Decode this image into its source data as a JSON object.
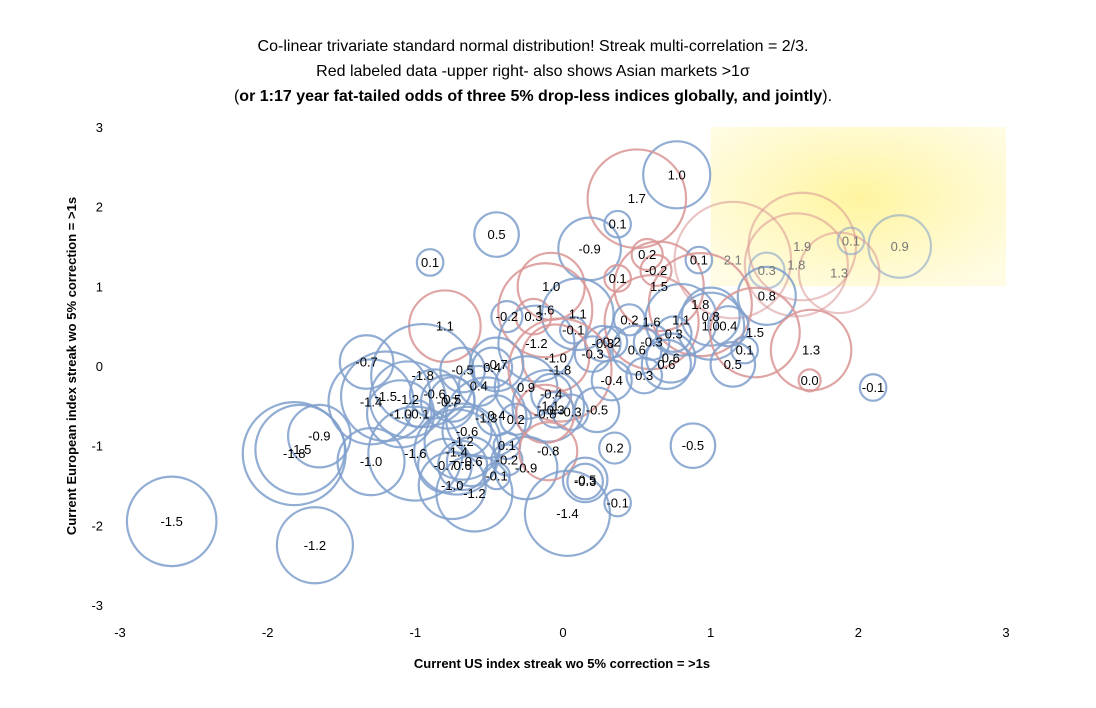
{
  "chart_data": {
    "type": "scatter",
    "subtype": "bubble",
    "title": "Co-linear trivariate standard normal distribution! Streak multi-correlation = 2/3.",
    "subtitle": "Red labeled data -upper right- also shows Asian markets >1σ",
    "subtitle2_open": "(",
    "subtitle2_bold": "or 1:17 year fat-tailed odds of three 5% drop-less indices globally, and jointly",
    "subtitle2_close": ").",
    "xlabel": "Current US index streak wo 5% correction = >1s",
    "ylabel": "Current European index streak wo 5% correction = >1s",
    "xlim": [
      -3,
      3
    ],
    "ylim": [
      -3,
      3
    ],
    "xticks": [
      "-3",
      "-2",
      "-1",
      "0",
      "1",
      "2",
      "3"
    ],
    "yticks": [
      "3",
      "2",
      "1",
      "0",
      "-1",
      "-2",
      "-3"
    ],
    "highlight_region": {
      "x": [
        1,
        3
      ],
      "y": [
        1,
        3
      ],
      "color": "#fff6a8",
      "meaning": "both US and European streaks > 1σ"
    },
    "colors": {
      "blue": "#7f9fcb",
      "red": "#d99595",
      "highlight": "#fff6a8"
    },
    "points": [
      {
        "x": 0.77,
        "y": 2.4,
        "label": "1.0",
        "size": 1.0,
        "color": "blue"
      },
      {
        "x": 0.5,
        "y": 2.1,
        "label": "1.7",
        "size": 1.7,
        "color": "red"
      },
      {
        "x": 0.37,
        "y": 1.78,
        "label": "0.1",
        "size": 0.1,
        "color": "blue"
      },
      {
        "x": -0.45,
        "y": 1.65,
        "label": "0.5",
        "size": 0.5,
        "color": "blue"
      },
      {
        "x": -0.9,
        "y": 1.3,
        "label": "0.1",
        "size": 0.1,
        "color": "blue"
      },
      {
        "x": 0.18,
        "y": 1.47,
        "label": "-0.9",
        "size": 0.9,
        "color": "blue"
      },
      {
        "x": 0.57,
        "y": 1.4,
        "label": "0.2",
        "size": 0.2,
        "color": "red"
      },
      {
        "x": 0.63,
        "y": 1.2,
        "label": "-0.2",
        "size": 0.2,
        "color": "red"
      },
      {
        "x": 0.37,
        "y": 1.1,
        "label": "0.1",
        "size": 0.1,
        "color": "red"
      },
      {
        "x": 0.65,
        "y": 1.0,
        "label": "1.5",
        "size": 1.5,
        "color": "red"
      },
      {
        "x": 0.92,
        "y": 1.33,
        "label": "0.1",
        "size": 0.1,
        "color": "blue"
      },
      {
        "x": 1.15,
        "y": 1.33,
        "label": "2.1",
        "size": 2.1,
        "color": "red",
        "faded": true
      },
      {
        "x": 1.38,
        "y": 1.2,
        "label": "0.3",
        "size": 0.3,
        "color": "blue",
        "faded": true
      },
      {
        "x": 1.58,
        "y": 1.27,
        "label": "1.8",
        "size": 1.8,
        "color": "red",
        "faded": true
      },
      {
        "x": 1.62,
        "y": 1.5,
        "label": "1.9",
        "size": 1.9,
        "color": "red",
        "faded": true
      },
      {
        "x": 1.95,
        "y": 1.57,
        "label": "0.1",
        "size": 0.1,
        "color": "blue",
        "faded": true
      },
      {
        "x": 2.28,
        "y": 1.5,
        "label": "0.9",
        "size": 0.9,
        "color": "blue",
        "faded": true
      },
      {
        "x": 1.87,
        "y": 1.17,
        "label": "1.3",
        "size": 1.3,
        "color": "red",
        "faded": true
      },
      {
        "x": 1.38,
        "y": 0.88,
        "label": "0.8",
        "size": 0.8,
        "color": "blue"
      },
      {
        "x": -0.08,
        "y": 1.0,
        "label": "1.0",
        "size": 1.0,
        "color": "red"
      },
      {
        "x": 0.93,
        "y": 0.77,
        "label": "1.8",
        "size": 1.8,
        "color": "red"
      },
      {
        "x": -0.38,
        "y": 0.62,
        "label": "-0.2",
        "size": 0.2,
        "color": "blue"
      },
      {
        "x": -0.2,
        "y": 0.62,
        "label": "0.3",
        "size": 0.3,
        "color": "red"
      },
      {
        "x": -0.12,
        "y": 0.7,
        "label": "1.6",
        "size": 1.6,
        "color": "red"
      },
      {
        "x": 0.1,
        "y": 0.65,
        "label": "1.1",
        "size": 1.1,
        "color": "blue"
      },
      {
        "x": 0.45,
        "y": 0.58,
        "label": "0.2",
        "size": 0.2,
        "color": "blue"
      },
      {
        "x": 0.6,
        "y": 0.55,
        "label": "1.6",
        "size": 1.6,
        "color": "red"
      },
      {
        "x": 0.8,
        "y": 0.58,
        "label": "1.1",
        "size": 1.1,
        "color": "blue"
      },
      {
        "x": 1.0,
        "y": 0.62,
        "label": "0.8",
        "size": 0.8,
        "color": "blue"
      },
      {
        "x": 1.12,
        "y": 0.5,
        "label": "0.4",
        "size": 0.4,
        "color": "blue"
      },
      {
        "x": 1.0,
        "y": 0.5,
        "label": "1.0",
        "size": 1.0,
        "color": "blue"
      },
      {
        "x": 1.3,
        "y": 0.42,
        "label": "1.5",
        "size": 1.5,
        "color": "red"
      },
      {
        "x": 0.75,
        "y": 0.4,
        "label": "0.3",
        "size": 0.3,
        "color": "blue"
      },
      {
        "x": 0.6,
        "y": 0.3,
        "label": "-0.3",
        "size": 0.3,
        "color": "blue"
      },
      {
        "x": -0.8,
        "y": 0.5,
        "label": "1.1",
        "size": 1.1,
        "color": "red"
      },
      {
        "x": 0.07,
        "y": 0.45,
        "label": "-0.1",
        "size": 0.1,
        "color": "blue"
      },
      {
        "x": -0.18,
        "y": 0.28,
        "label": "-1.2",
        "size": 1.2,
        "color": "blue"
      },
      {
        "x": 0.27,
        "y": 0.28,
        "label": "-0.3",
        "size": 0.3,
        "color": "blue"
      },
      {
        "x": 0.33,
        "y": 0.3,
        "label": "0.2",
        "size": 0.2,
        "color": "blue"
      },
      {
        "x": 0.5,
        "y": 0.2,
        "label": "0.6",
        "size": 0.6,
        "color": "blue"
      },
      {
        "x": 0.2,
        "y": 0.15,
        "label": "-0.3",
        "size": 0.3,
        "color": "blue"
      },
      {
        "x": -0.05,
        "y": 0.1,
        "label": "-1.0",
        "size": 1.0,
        "color": "red"
      },
      {
        "x": 0.73,
        "y": 0.1,
        "label": "0.6",
        "size": 0.6,
        "color": "blue"
      },
      {
        "x": 0.7,
        "y": 0.02,
        "label": "0.6",
        "size": 0.6,
        "color": "blue"
      },
      {
        "x": 1.23,
        "y": 0.2,
        "label": "0.1",
        "size": 0.1,
        "color": "blue"
      },
      {
        "x": 1.68,
        "y": 0.2,
        "label": "1.3",
        "size": 1.3,
        "color": "red"
      },
      {
        "x": 1.15,
        "y": 0.02,
        "label": "0.5",
        "size": 0.5,
        "color": "blue"
      },
      {
        "x": 1.67,
        "y": -0.18,
        "label": "0.0",
        "size": 0.0,
        "color": "red"
      },
      {
        "x": 2.1,
        "y": -0.27,
        "label": "-0.1",
        "size": 0.1,
        "color": "blue"
      },
      {
        "x": -1.33,
        "y": 0.05,
        "label": "-0.7",
        "size": 0.7,
        "color": "blue"
      },
      {
        "x": -0.95,
        "y": -0.12,
        "label": "-1.8",
        "size": 1.8,
        "color": "blue"
      },
      {
        "x": -0.68,
        "y": -0.05,
        "label": "-0.5",
        "size": 0.5,
        "color": "blue"
      },
      {
        "x": -0.48,
        "y": -0.02,
        "label": "0.4",
        "size": 0.4,
        "color": "blue"
      },
      {
        "x": -0.45,
        "y": 0.02,
        "label": "-0.7",
        "size": 0.7,
        "color": "blue"
      },
      {
        "x": -0.57,
        "y": -0.25,
        "label": "0.4",
        "size": 0.4,
        "color": "blue"
      },
      {
        "x": -0.02,
        "y": -0.05,
        "label": "-1.8",
        "size": 1.8,
        "color": "red"
      },
      {
        "x": 0.33,
        "y": -0.18,
        "label": "-0.4",
        "size": 0.4,
        "color": "blue"
      },
      {
        "x": 0.55,
        "y": -0.12,
        "label": "0.3",
        "size": 0.3,
        "color": "blue"
      },
      {
        "x": -0.25,
        "y": -0.27,
        "label": "0.9",
        "size": 0.9,
        "color": "blue"
      },
      {
        "x": -0.08,
        "y": -0.35,
        "label": "-0.4",
        "size": 0.4,
        "color": "blue"
      },
      {
        "x": -1.3,
        "y": -0.45,
        "label": "-1.4",
        "size": 1.4,
        "color": "blue"
      },
      {
        "x": -1.2,
        "y": -0.38,
        "label": "-1.5",
        "size": 1.5,
        "color": "blue"
      },
      {
        "x": -1.05,
        "y": -0.42,
        "label": "-1.2",
        "size": 1.2,
        "color": "blue"
      },
      {
        "x": -1.1,
        "y": -0.6,
        "label": "-1.0",
        "size": 1.0,
        "color": "blue"
      },
      {
        "x": -0.98,
        "y": -0.6,
        "label": "-0.1",
        "size": 0.1,
        "color": "blue"
      },
      {
        "x": -0.87,
        "y": -0.35,
        "label": "-0.6",
        "size": 0.6,
        "color": "blue"
      },
      {
        "x": -0.78,
        "y": -0.45,
        "label": "-0.7",
        "size": 0.7,
        "color": "blue"
      },
      {
        "x": -0.75,
        "y": -0.42,
        "label": "0.5",
        "size": 0.5,
        "color": "blue"
      },
      {
        "x": -0.52,
        "y": -0.65,
        "label": "-1.3",
        "size": 1.3,
        "color": "blue"
      },
      {
        "x": -0.45,
        "y": -0.62,
        "label": "0.4",
        "size": 0.4,
        "color": "blue"
      },
      {
        "x": -0.32,
        "y": -0.67,
        "label": "0.2",
        "size": 0.2,
        "color": "blue"
      },
      {
        "x": -0.1,
        "y": -0.5,
        "label": "-1.1",
        "size": 1.1,
        "color": "blue"
      },
      {
        "x": -0.12,
        "y": -0.6,
        "label": "-0.8",
        "size": 0.8,
        "color": "red"
      },
      {
        "x": -0.05,
        "y": -0.55,
        "label": "0.3",
        "size": 0.3,
        "color": "blue"
      },
      {
        "x": 0.05,
        "y": -0.58,
        "label": "-0.3",
        "size": 0.3,
        "color": "blue"
      },
      {
        "x": 0.23,
        "y": -0.55,
        "label": "-0.5",
        "size": 0.5,
        "color": "blue"
      },
      {
        "x": -1.65,
        "y": -0.88,
        "label": "-0.9",
        "size": 0.9,
        "color": "blue"
      },
      {
        "x": -1.78,
        "y": -1.05,
        "label": "-1.5",
        "size": 1.5,
        "color": "blue"
      },
      {
        "x": -1.82,
        "y": -1.1,
        "label": "-1.8",
        "size": 1.8,
        "color": "blue"
      },
      {
        "x": -1.3,
        "y": -1.2,
        "label": "-1.0",
        "size": 1.0,
        "color": "blue"
      },
      {
        "x": -1.0,
        "y": -1.1,
        "label": "-1.6",
        "size": 1.6,
        "color": "blue"
      },
      {
        "x": -0.65,
        "y": -0.82,
        "label": "-0.6",
        "size": 0.6,
        "color": "blue"
      },
      {
        "x": -0.68,
        "y": -0.95,
        "label": "-1.2",
        "size": 1.2,
        "color": "blue"
      },
      {
        "x": -0.72,
        "y": -1.08,
        "label": "-1.4",
        "size": 1.4,
        "color": "blue"
      },
      {
        "x": -0.8,
        "y": -1.25,
        "label": "-0.7",
        "size": 0.7,
        "color": "blue"
      },
      {
        "x": -0.68,
        "y": -1.25,
        "label": "0.6",
        "size": 0.6,
        "color": "blue"
      },
      {
        "x": -0.62,
        "y": -1.2,
        "label": "-0.6",
        "size": 0.6,
        "color": "blue"
      },
      {
        "x": -0.75,
        "y": -1.5,
        "label": "-1.0",
        "size": 1.0,
        "color": "blue"
      },
      {
        "x": -0.6,
        "y": -1.6,
        "label": "-1.2",
        "size": 1.2,
        "color": "blue"
      },
      {
        "x": -0.38,
        "y": -1.0,
        "label": "0.1",
        "size": 0.1,
        "color": "blue"
      },
      {
        "x": -0.38,
        "y": -1.18,
        "label": "-0.2",
        "size": 0.2,
        "color": "blue"
      },
      {
        "x": -0.25,
        "y": -1.28,
        "label": "-0.9",
        "size": 0.9,
        "color": "blue"
      },
      {
        "x": -0.45,
        "y": -1.38,
        "label": "-0.1",
        "size": 0.1,
        "color": "blue"
      },
      {
        "x": -0.1,
        "y": -1.07,
        "label": "-0.8",
        "size": 0.8,
        "color": "red"
      },
      {
        "x": 0.15,
        "y": -1.45,
        "label": "-0.3",
        "size": 0.3,
        "color": "blue"
      },
      {
        "x": 0.15,
        "y": -1.43,
        "label": "-0.5",
        "size": 0.5,
        "color": "blue"
      },
      {
        "x": 0.37,
        "y": -1.72,
        "label": "-0.1",
        "size": 0.1,
        "color": "blue"
      },
      {
        "x": 0.03,
        "y": -1.85,
        "label": "-1.4",
        "size": 1.4,
        "color": "blue"
      },
      {
        "x": 0.35,
        "y": -1.03,
        "label": "0.2",
        "size": 0.2,
        "color": "blue"
      },
      {
        "x": 0.88,
        "y": -1.0,
        "label": "-0.5",
        "size": 0.5,
        "color": "blue"
      },
      {
        "x": -2.65,
        "y": -1.95,
        "label": "-1.5",
        "size": 1.5,
        "color": "blue"
      },
      {
        "x": -1.68,
        "y": -2.25,
        "label": "-1.2",
        "size": 1.2,
        "color": "blue"
      }
    ]
  }
}
